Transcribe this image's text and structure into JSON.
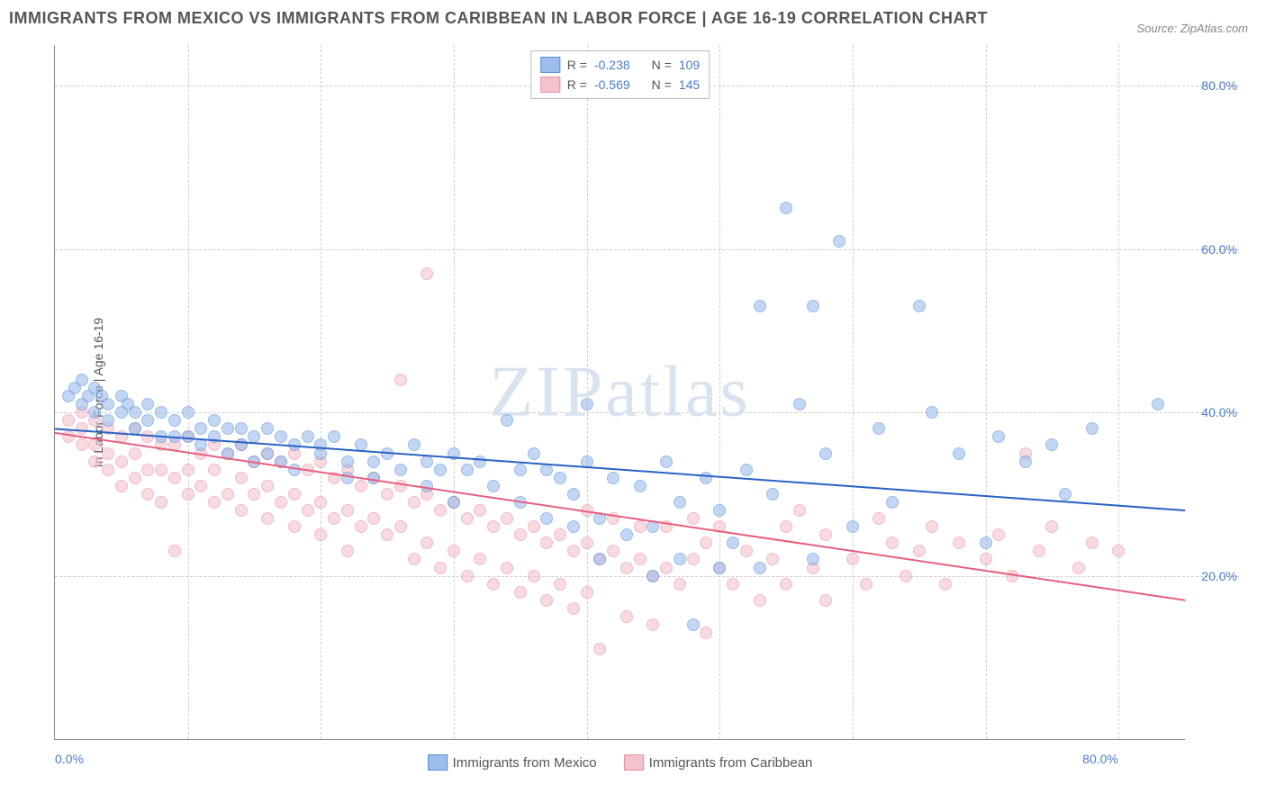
{
  "title": "IMMIGRANTS FROM MEXICO VS IMMIGRANTS FROM CARIBBEAN IN LABOR FORCE | AGE 16-19 CORRELATION CHART",
  "source_label": "Source: ZipAtlas.com",
  "watermark": "ZIPatlas",
  "yaxis_title": "In Labor Force | Age 16-19",
  "chart": {
    "type": "scatter",
    "xlim": [
      0,
      85
    ],
    "ylim": [
      0,
      85
    ],
    "ytick_labels": [
      "20.0%",
      "40.0%",
      "60.0%",
      "80.0%"
    ],
    "ytick_values": [
      20,
      40,
      60,
      80
    ],
    "xtick_labels": [
      "0.0%",
      "80.0%"
    ],
    "xtick_values": [
      0,
      80
    ],
    "vgrid_values": [
      10,
      20,
      30,
      40,
      50,
      60,
      70,
      80
    ],
    "background_color": "#ffffff",
    "grid_color": "#cccccc",
    "marker_radius": 7,
    "marker_opacity": 0.6,
    "label_color": "#4a7bc8"
  },
  "series": [
    {
      "name": "Immigrants from Mexico",
      "fill_color": "#9cbded",
      "stroke_color": "#5a8fd6",
      "line_color": "#2962c4",
      "R_label": "R =",
      "R": "-0.238",
      "N_label": "N =",
      "N": "109",
      "trend": {
        "y_at_x0": 38,
        "y_at_xmax": 28
      },
      "points": [
        [
          1,
          42
        ],
        [
          1.5,
          43
        ],
        [
          2,
          44
        ],
        [
          2,
          41
        ],
        [
          2.5,
          42
        ],
        [
          3,
          43
        ],
        [
          3,
          40
        ],
        [
          3.5,
          42
        ],
        [
          4,
          41
        ],
        [
          4,
          39
        ],
        [
          5,
          42
        ],
        [
          5,
          40
        ],
        [
          5.5,
          41
        ],
        [
          6,
          40
        ],
        [
          6,
          38
        ],
        [
          7,
          41
        ],
        [
          7,
          39
        ],
        [
          8,
          40
        ],
        [
          8,
          37
        ],
        [
          9,
          39
        ],
        [
          9,
          37
        ],
        [
          10,
          40
        ],
        [
          10,
          37
        ],
        [
          11,
          38
        ],
        [
          11,
          36
        ],
        [
          12,
          39
        ],
        [
          12,
          37
        ],
        [
          13,
          38
        ],
        [
          13,
          35
        ],
        [
          14,
          38
        ],
        [
          14,
          36
        ],
        [
          15,
          37
        ],
        [
          15,
          34
        ],
        [
          16,
          38
        ],
        [
          16,
          35
        ],
        [
          17,
          37
        ],
        [
          17,
          34
        ],
        [
          18,
          36
        ],
        [
          18,
          33
        ],
        [
          19,
          37
        ],
        [
          20,
          36
        ],
        [
          20,
          35
        ],
        [
          21,
          37
        ],
        [
          22,
          34
        ],
        [
          22,
          32
        ],
        [
          23,
          36
        ],
        [
          24,
          34
        ],
        [
          24,
          32
        ],
        [
          25,
          35
        ],
        [
          26,
          33
        ],
        [
          27,
          36
        ],
        [
          28,
          34
        ],
        [
          28,
          31
        ],
        [
          29,
          33
        ],
        [
          30,
          35
        ],
        [
          30,
          29
        ],
        [
          31,
          33
        ],
        [
          32,
          34
        ],
        [
          33,
          31
        ],
        [
          34,
          39
        ],
        [
          35,
          29
        ],
        [
          35,
          33
        ],
        [
          36,
          35
        ],
        [
          37,
          27
        ],
        [
          37,
          33
        ],
        [
          38,
          32
        ],
        [
          39,
          26
        ],
        [
          39,
          30
        ],
        [
          40,
          34
        ],
        [
          40,
          41
        ],
        [
          41,
          22
        ],
        [
          41,
          27
        ],
        [
          42,
          32
        ],
        [
          43,
          25
        ],
        [
          44,
          31
        ],
        [
          45,
          20
        ],
        [
          45,
          26
        ],
        [
          46,
          34
        ],
        [
          47,
          22
        ],
        [
          47,
          29
        ],
        [
          48,
          14
        ],
        [
          49,
          32
        ],
        [
          50,
          21
        ],
        [
          50,
          28
        ],
        [
          51,
          24
        ],
        [
          52,
          33
        ],
        [
          53,
          53
        ],
        [
          53,
          21
        ],
        [
          54,
          30
        ],
        [
          55,
          65
        ],
        [
          56,
          41
        ],
        [
          57,
          22
        ],
        [
          57,
          53
        ],
        [
          58,
          35
        ],
        [
          59,
          61
        ],
        [
          60,
          26
        ],
        [
          62,
          38
        ],
        [
          63,
          29
        ],
        [
          65,
          53
        ],
        [
          66,
          40
        ],
        [
          68,
          35
        ],
        [
          70,
          24
        ],
        [
          71,
          37
        ],
        [
          73,
          34
        ],
        [
          75,
          36
        ],
        [
          76,
          30
        ],
        [
          78,
          38
        ],
        [
          83,
          41
        ]
      ]
    },
    {
      "name": "Immigrants from Caribbean",
      "fill_color": "#f4c2ce",
      "stroke_color": "#e88fa5",
      "line_color": "#e85f7f",
      "R_label": "R =",
      "R": "-0.569",
      "N_label": "N =",
      "N": "145",
      "trend": {
        "y_at_x0": 37.5,
        "y_at_xmax": 17
      },
      "points": [
        [
          1,
          39
        ],
        [
          1,
          37
        ],
        [
          2,
          40
        ],
        [
          2,
          38
        ],
        [
          2,
          36
        ],
        [
          3,
          39
        ],
        [
          3,
          36
        ],
        [
          3,
          34
        ],
        [
          4,
          38
        ],
        [
          4,
          35
        ],
        [
          4,
          33
        ],
        [
          5,
          37
        ],
        [
          5,
          34
        ],
        [
          5,
          31
        ],
        [
          6,
          38
        ],
        [
          6,
          35
        ],
        [
          6,
          32
        ],
        [
          7,
          37
        ],
        [
          7,
          33
        ],
        [
          7,
          30
        ],
        [
          8,
          36
        ],
        [
          8,
          33
        ],
        [
          8,
          29
        ],
        [
          9,
          36
        ],
        [
          9,
          32
        ],
        [
          9,
          23
        ],
        [
          10,
          37
        ],
        [
          10,
          33
        ],
        [
          10,
          30
        ],
        [
          11,
          35
        ],
        [
          11,
          31
        ],
        [
          12,
          36
        ],
        [
          12,
          33
        ],
        [
          12,
          29
        ],
        [
          13,
          35
        ],
        [
          13,
          30
        ],
        [
          14,
          36
        ],
        [
          14,
          32
        ],
        [
          14,
          28
        ],
        [
          15,
          34
        ],
        [
          15,
          30
        ],
        [
          16,
          35
        ],
        [
          16,
          31
        ],
        [
          16,
          27
        ],
        [
          17,
          34
        ],
        [
          17,
          29
        ],
        [
          18,
          35
        ],
        [
          18,
          30
        ],
        [
          18,
          26
        ],
        [
          19,
          33
        ],
        [
          19,
          28
        ],
        [
          20,
          34
        ],
        [
          20,
          29
        ],
        [
          20,
          25
        ],
        [
          21,
          32
        ],
        [
          21,
          27
        ],
        [
          22,
          33
        ],
        [
          22,
          28
        ],
        [
          22,
          23
        ],
        [
          23,
          31
        ],
        [
          23,
          26
        ],
        [
          24,
          32
        ],
        [
          24,
          27
        ],
        [
          25,
          30
        ],
        [
          25,
          25
        ],
        [
          26,
          44
        ],
        [
          26,
          31
        ],
        [
          26,
          26
        ],
        [
          27,
          29
        ],
        [
          27,
          22
        ],
        [
          28,
          30
        ],
        [
          28,
          24
        ],
        [
          28,
          57
        ],
        [
          29,
          28
        ],
        [
          29,
          21
        ],
        [
          30,
          29
        ],
        [
          30,
          23
        ],
        [
          31,
          27
        ],
        [
          31,
          20
        ],
        [
          32,
          28
        ],
        [
          32,
          22
        ],
        [
          33,
          26
        ],
        [
          33,
          19
        ],
        [
          34,
          27
        ],
        [
          34,
          21
        ],
        [
          35,
          25
        ],
        [
          35,
          18
        ],
        [
          36,
          26
        ],
        [
          36,
          20
        ],
        [
          37,
          24
        ],
        [
          37,
          17
        ],
        [
          38,
          25
        ],
        [
          38,
          19
        ],
        [
          39,
          23
        ],
        [
          39,
          16
        ],
        [
          40,
          24
        ],
        [
          40,
          28
        ],
        [
          40,
          18
        ],
        [
          41,
          22
        ],
        [
          41,
          11
        ],
        [
          42,
          23
        ],
        [
          42,
          27
        ],
        [
          43,
          21
        ],
        [
          43,
          15
        ],
        [
          44,
          22
        ],
        [
          44,
          26
        ],
        [
          45,
          20
        ],
        [
          45,
          14
        ],
        [
          46,
          21
        ],
        [
          46,
          26
        ],
        [
          47,
          19
        ],
        [
          48,
          22
        ],
        [
          48,
          27
        ],
        [
          49,
          13
        ],
        [
          49,
          24
        ],
        [
          50,
          21
        ],
        [
          50,
          26
        ],
        [
          51,
          19
        ],
        [
          52,
          23
        ],
        [
          53,
          17
        ],
        [
          54,
          22
        ],
        [
          55,
          26
        ],
        [
          55,
          19
        ],
        [
          56,
          28
        ],
        [
          57,
          21
        ],
        [
          58,
          25
        ],
        [
          58,
          17
        ],
        [
          60,
          22
        ],
        [
          61,
          19
        ],
        [
          62,
          27
        ],
        [
          63,
          24
        ],
        [
          64,
          20
        ],
        [
          65,
          23
        ],
        [
          66,
          26
        ],
        [
          67,
          19
        ],
        [
          68,
          24
        ],
        [
          70,
          22
        ],
        [
          71,
          25
        ],
        [
          72,
          20
        ],
        [
          73,
          35
        ],
        [
          74,
          23
        ],
        [
          75,
          26
        ],
        [
          77,
          21
        ],
        [
          78,
          24
        ],
        [
          80,
          23
        ]
      ]
    }
  ],
  "legend_bottom": [
    "Immigrants from Mexico",
    "Immigrants from Caribbean"
  ]
}
